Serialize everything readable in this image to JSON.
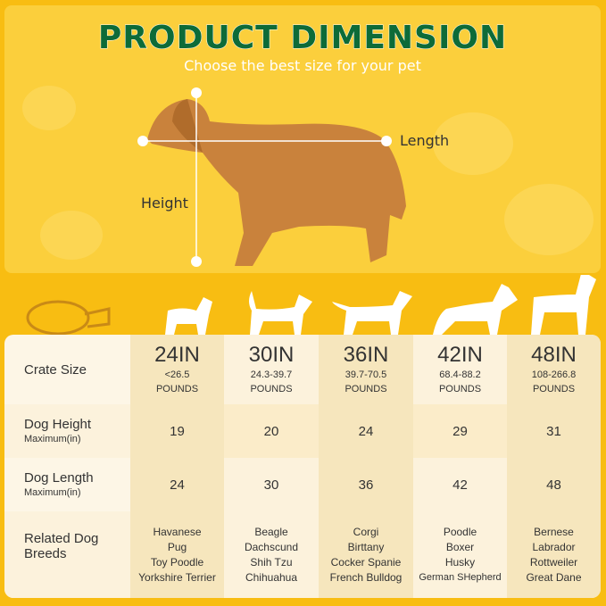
{
  "header": {
    "title": "PRODUCT DIMENSION",
    "subtitle": "Choose the best size for your pet"
  },
  "labels": {
    "length": "Length",
    "height": "Height"
  },
  "table": {
    "row_labels": [
      {
        "title": "Crate Size",
        "sub": ""
      },
      {
        "title": "Dog Height",
        "sub": "Maximum(in)"
      },
      {
        "title": "Dog Length",
        "sub": "Maximum(in)"
      },
      {
        "title": "Related Dog Breeds",
        "sub": ""
      }
    ],
    "columns": [
      {
        "size": "24IN",
        "weight": "<26.5",
        "unit": "POUNDS",
        "height": "19",
        "length": "24",
        "breeds": [
          "Havanese",
          "Pug",
          "Toy Poodle",
          "Yorkshire Terrier"
        ]
      },
      {
        "size": "30IN",
        "weight": "24.3-39.7",
        "unit": "POUNDS",
        "height": "20",
        "length": "30",
        "breeds": [
          "Beagle",
          "Dachscund",
          "Shih Tzu",
          "Chihuahua"
        ]
      },
      {
        "size": "36IN",
        "weight": "39.7-70.5",
        "unit": "POUNDS",
        "height": "24",
        "length": "36",
        "breeds": [
          "Corgi",
          "Birttany",
          "Cocker Spanie",
          "French Bulldog"
        ]
      },
      {
        "size": "42IN",
        "weight": "68.4-88.2",
        "unit": "POUNDS",
        "height": "29",
        "length": "42",
        "breeds": [
          "Poodle",
          "Boxer",
          "Husky",
          "German SHepherd"
        ]
      },
      {
        "size": "48IN",
        "weight": "108-266.8",
        "unit": "POUNDS",
        "height": "31",
        "length": "48",
        "breeds": [
          "Bernese",
          "Labrador",
          "Rottweiler",
          "Great Dane"
        ]
      }
    ]
  },
  "colors": {
    "background": "#f8bd12",
    "title": "#0d6b38"
  }
}
